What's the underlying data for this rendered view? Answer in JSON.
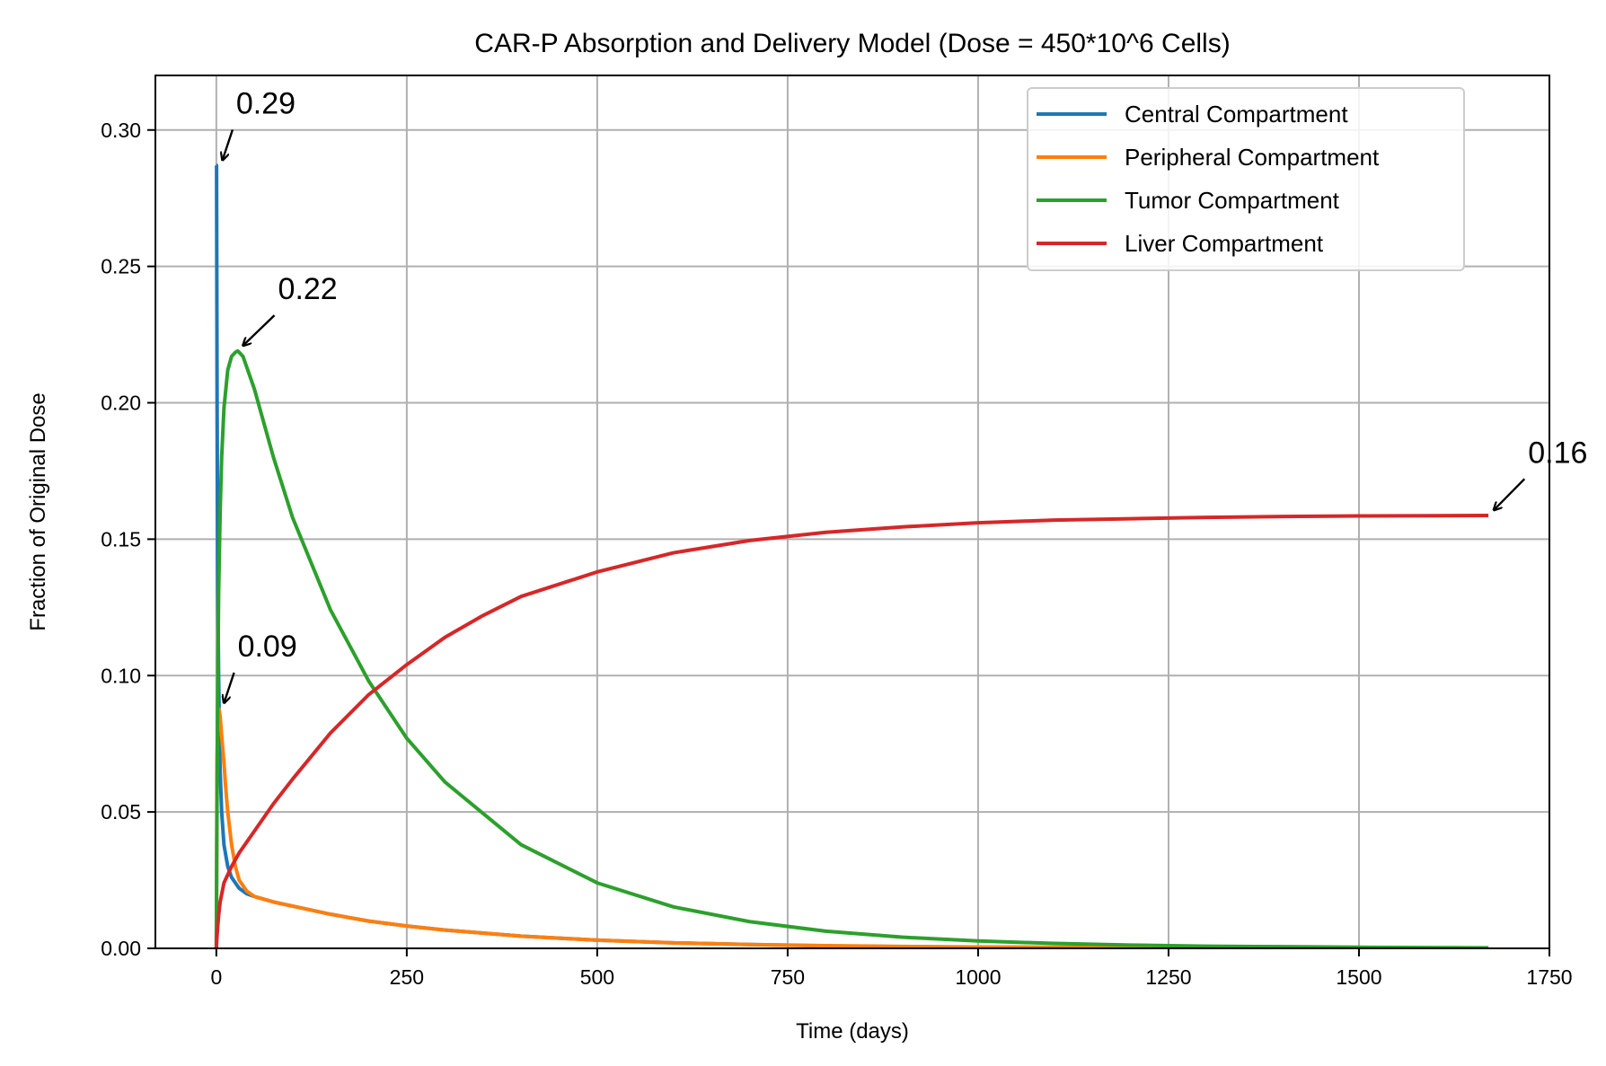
{
  "chart_data": {
    "type": "line",
    "title": "CAR-P Absorption and Delivery Model (Dose = 450*10^6 Cells)",
    "xlabel": "Time (days)",
    "ylabel": "Fraction of Original Dose",
    "xlim": [
      -80,
      1750
    ],
    "ylim": [
      0,
      0.32
    ],
    "xticks": [
      0,
      250,
      500,
      750,
      1000,
      1250,
      1500,
      1750
    ],
    "xtick_labels": [
      "0",
      "250",
      "500",
      "750",
      "1000",
      "1250",
      "1500",
      "1750"
    ],
    "yticks": [
      0.0,
      0.05,
      0.1,
      0.15,
      0.2,
      0.25,
      0.3
    ],
    "ytick_labels": [
      "0.00",
      "0.05",
      "0.10",
      "0.15",
      "0.20",
      "0.25",
      "0.30"
    ],
    "grid": true,
    "legend_position": "top-right",
    "series": [
      {
        "name": "Central Compartment",
        "color": "#1f77b4",
        "x": [
          0,
          0.3,
          0.6,
          1,
          1.5,
          2,
          3,
          4,
          5,
          7,
          10,
          15,
          20,
          30,
          40,
          50,
          75,
          100,
          150,
          200,
          250,
          300,
          400,
          500,
          600,
          700,
          800,
          900,
          1000,
          1100,
          1200
        ],
        "y": [
          0.287,
          0.287,
          0.25,
          0.2,
          0.16,
          0.13,
          0.1,
          0.08,
          0.065,
          0.05,
          0.038,
          0.03,
          0.026,
          0.022,
          0.02,
          0.019,
          0.017,
          0.0155,
          0.0125,
          0.01,
          0.0082,
          0.0067,
          0.0045,
          0.003,
          0.002,
          0.0014,
          0.0009,
          0.0006,
          0.0004,
          0.0003,
          0.0002
        ]
      },
      {
        "name": "Peripheral Compartment",
        "color": "#ff7f0e",
        "x": [
          0,
          0.5,
          1,
          2,
          3,
          4,
          5,
          7,
          10,
          12,
          15,
          20,
          25,
          30,
          40,
          50,
          75,
          100,
          150,
          200,
          250,
          300,
          400,
          500,
          600,
          700,
          800,
          900,
          1000,
          1200,
          1400,
          1670
        ],
        "y": [
          0,
          0.04,
          0.07,
          0.086,
          0.088,
          0.087,
          0.085,
          0.078,
          0.068,
          0.06,
          0.05,
          0.038,
          0.03,
          0.025,
          0.021,
          0.019,
          0.017,
          0.0155,
          0.0125,
          0.01,
          0.0082,
          0.0067,
          0.0045,
          0.003,
          0.002,
          0.0014,
          0.001,
          0.0007,
          0.0005,
          0.0003,
          0.0002,
          0.0001
        ]
      },
      {
        "name": "Tumor Compartment",
        "color": "#2ca02c",
        "x": [
          0,
          1,
          2,
          3,
          5,
          7,
          10,
          15,
          20,
          25,
          28,
          30,
          35,
          40,
          50,
          75,
          100,
          150,
          200,
          250,
          300,
          400,
          500,
          600,
          700,
          800,
          900,
          1000,
          1100,
          1200,
          1300,
          1400,
          1500,
          1670
        ],
        "y": [
          0,
          0.06,
          0.1,
          0.13,
          0.16,
          0.18,
          0.198,
          0.212,
          0.217,
          0.2185,
          0.219,
          0.2185,
          0.217,
          0.213,
          0.205,
          0.18,
          0.158,
          0.124,
          0.098,
          0.077,
          0.061,
          0.038,
          0.024,
          0.0152,
          0.0098,
          0.0063,
          0.0041,
          0.0027,
          0.0018,
          0.0012,
          0.0008,
          0.0006,
          0.0004,
          0.0002
        ]
      },
      {
        "name": "Liver Compartment",
        "color": "#d62728",
        "x": [
          0,
          1,
          3,
          5,
          10,
          20,
          30,
          50,
          75,
          100,
          150,
          200,
          250,
          300,
          350,
          400,
          500,
          600,
          700,
          800,
          900,
          1000,
          1100,
          1200,
          1300,
          1400,
          1500,
          1600,
          1670
        ],
        "y": [
          0,
          0.005,
          0.012,
          0.017,
          0.024,
          0.03,
          0.035,
          0.043,
          0.053,
          0.062,
          0.079,
          0.093,
          0.104,
          0.114,
          0.122,
          0.129,
          0.138,
          0.145,
          0.1495,
          0.1525,
          0.1545,
          0.156,
          0.157,
          0.1575,
          0.158,
          0.1583,
          0.1585,
          0.1586,
          0.1587
        ]
      }
    ],
    "annotations": [
      {
        "text": "0.29",
        "x": 1,
        "y": 0.287,
        "text_x": 26,
        "text_y": 0.306
      },
      {
        "text": "0.22",
        "x": 28,
        "y": 0.219,
        "text_x": 81,
        "text_y": 0.238
      },
      {
        "text": "0.09",
        "x": 3,
        "y": 0.088,
        "text_x": 28,
        "text_y": 0.107
      },
      {
        "text": "0.16",
        "x": 1670,
        "y": 0.1587,
        "text_x": 1722,
        "text_y": 0.178
      }
    ]
  }
}
